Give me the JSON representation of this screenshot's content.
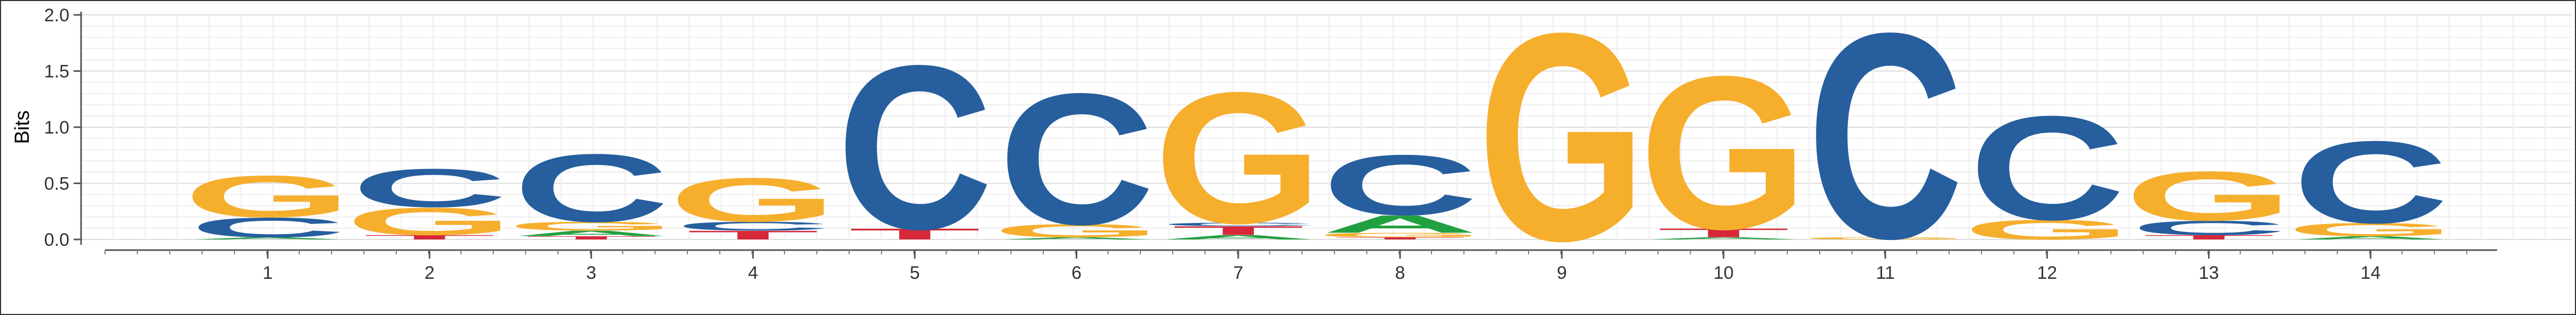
{
  "chart_data": {
    "type": "sequence-logo",
    "ylabel": "Bits",
    "ylim": [
      0,
      2
    ],
    "yticks": [
      {
        "value": 0,
        "label": "0.0"
      },
      {
        "value": 0.5,
        "label": "0.5"
      },
      {
        "value": 1,
        "label": "1.0"
      },
      {
        "value": 1.5,
        "label": "1.5"
      },
      {
        "value": 2,
        "label": "2.0"
      }
    ],
    "grid": true,
    "colors": {
      "A": "#21a041",
      "C": "#265e9e",
      "G": "#f6ae2d",
      "T": "#d62839"
    },
    "positions": [
      {
        "label": "1",
        "stack": [
          {
            "letter": "A",
            "bits": 0.02
          },
          {
            "letter": "C",
            "bits": 0.18
          },
          {
            "letter": "G",
            "bits": 0.38
          }
        ]
      },
      {
        "label": "2",
        "stack": [
          {
            "letter": "T",
            "bits": 0.04
          },
          {
            "letter": "G",
            "bits": 0.25
          },
          {
            "letter": "C",
            "bits": 0.35
          }
        ]
      },
      {
        "label": "3",
        "stack": [
          {
            "letter": "T",
            "bits": 0.03
          },
          {
            "letter": "A",
            "bits": 0.05
          },
          {
            "letter": "G",
            "bits": 0.08
          },
          {
            "letter": "C",
            "bits": 0.62
          }
        ]
      },
      {
        "label": "4",
        "stack": [
          {
            "letter": "T",
            "bits": 0.08
          },
          {
            "letter": "C",
            "bits": 0.08
          },
          {
            "letter": "G",
            "bits": 0.4
          }
        ]
      },
      {
        "label": "5",
        "stack": [
          {
            "letter": "T",
            "bits": 0.1
          },
          {
            "letter": "C",
            "bits": 1.5
          }
        ]
      },
      {
        "label": "6",
        "stack": [
          {
            "letter": "A",
            "bits": 0.02
          },
          {
            "letter": "G",
            "bits": 0.12
          },
          {
            "letter": "C",
            "bits": 1.2
          }
        ]
      },
      {
        "label": "7",
        "stack": [
          {
            "letter": "A",
            "bits": 0.04
          },
          {
            "letter": "T",
            "bits": 0.08
          },
          {
            "letter": "C",
            "bits": 0.03
          },
          {
            "letter": "G",
            "bits": 1.2
          }
        ]
      },
      {
        "label": "8",
        "stack": [
          {
            "letter": "T",
            "bits": 0.02
          },
          {
            "letter": "G",
            "bits": 0.04
          },
          {
            "letter": "A",
            "bits": 0.16
          },
          {
            "letter": "C",
            "bits": 0.55
          }
        ]
      },
      {
        "label": "9",
        "stack": [
          {
            "letter": "G",
            "bits": 1.9
          }
        ]
      },
      {
        "label": "10",
        "stack": [
          {
            "letter": "A",
            "bits": 0.02
          },
          {
            "letter": "T",
            "bits": 0.08
          },
          {
            "letter": "G",
            "bits": 1.4
          }
        ]
      },
      {
        "label": "11",
        "stack": [
          {
            "letter": "G",
            "bits": 0.02
          },
          {
            "letter": "C",
            "bits": 1.88
          }
        ]
      },
      {
        "label": "12",
        "stack": [
          {
            "letter": "G",
            "bits": 0.18
          },
          {
            "letter": "C",
            "bits": 0.95
          }
        ]
      },
      {
        "label": "13",
        "stack": [
          {
            "letter": "T",
            "bits": 0.04
          },
          {
            "letter": "C",
            "bits": 0.13
          },
          {
            "letter": "G",
            "bits": 0.45
          }
        ]
      },
      {
        "label": "14",
        "stack": [
          {
            "letter": "A",
            "bits": 0.03
          },
          {
            "letter": "G",
            "bits": 0.12
          },
          {
            "letter": "C",
            "bits": 0.75
          }
        ]
      }
    ]
  }
}
